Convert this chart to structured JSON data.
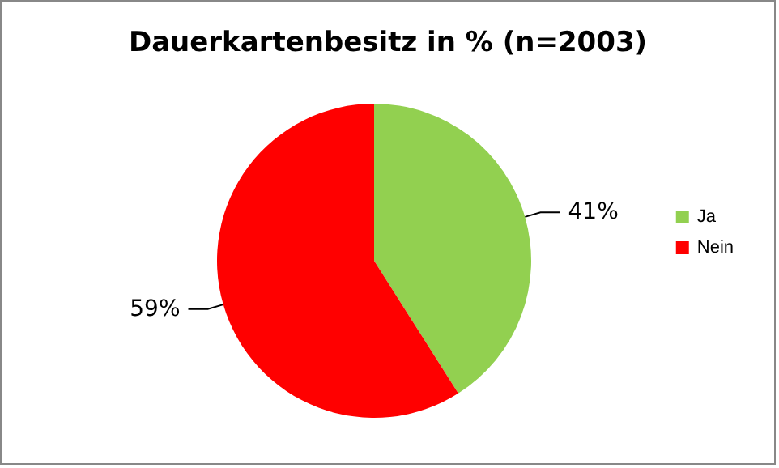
{
  "chart_data": {
    "type": "pie",
    "title": "Dauerkartenbesitz in % (n=2003)",
    "categories": [
      "Ja",
      "Nein"
    ],
    "values": [
      41,
      59
    ],
    "colors": [
      "#92d050",
      "#ff0000"
    ],
    "value_labels": [
      "41%",
      "59%"
    ],
    "legend": "right"
  }
}
